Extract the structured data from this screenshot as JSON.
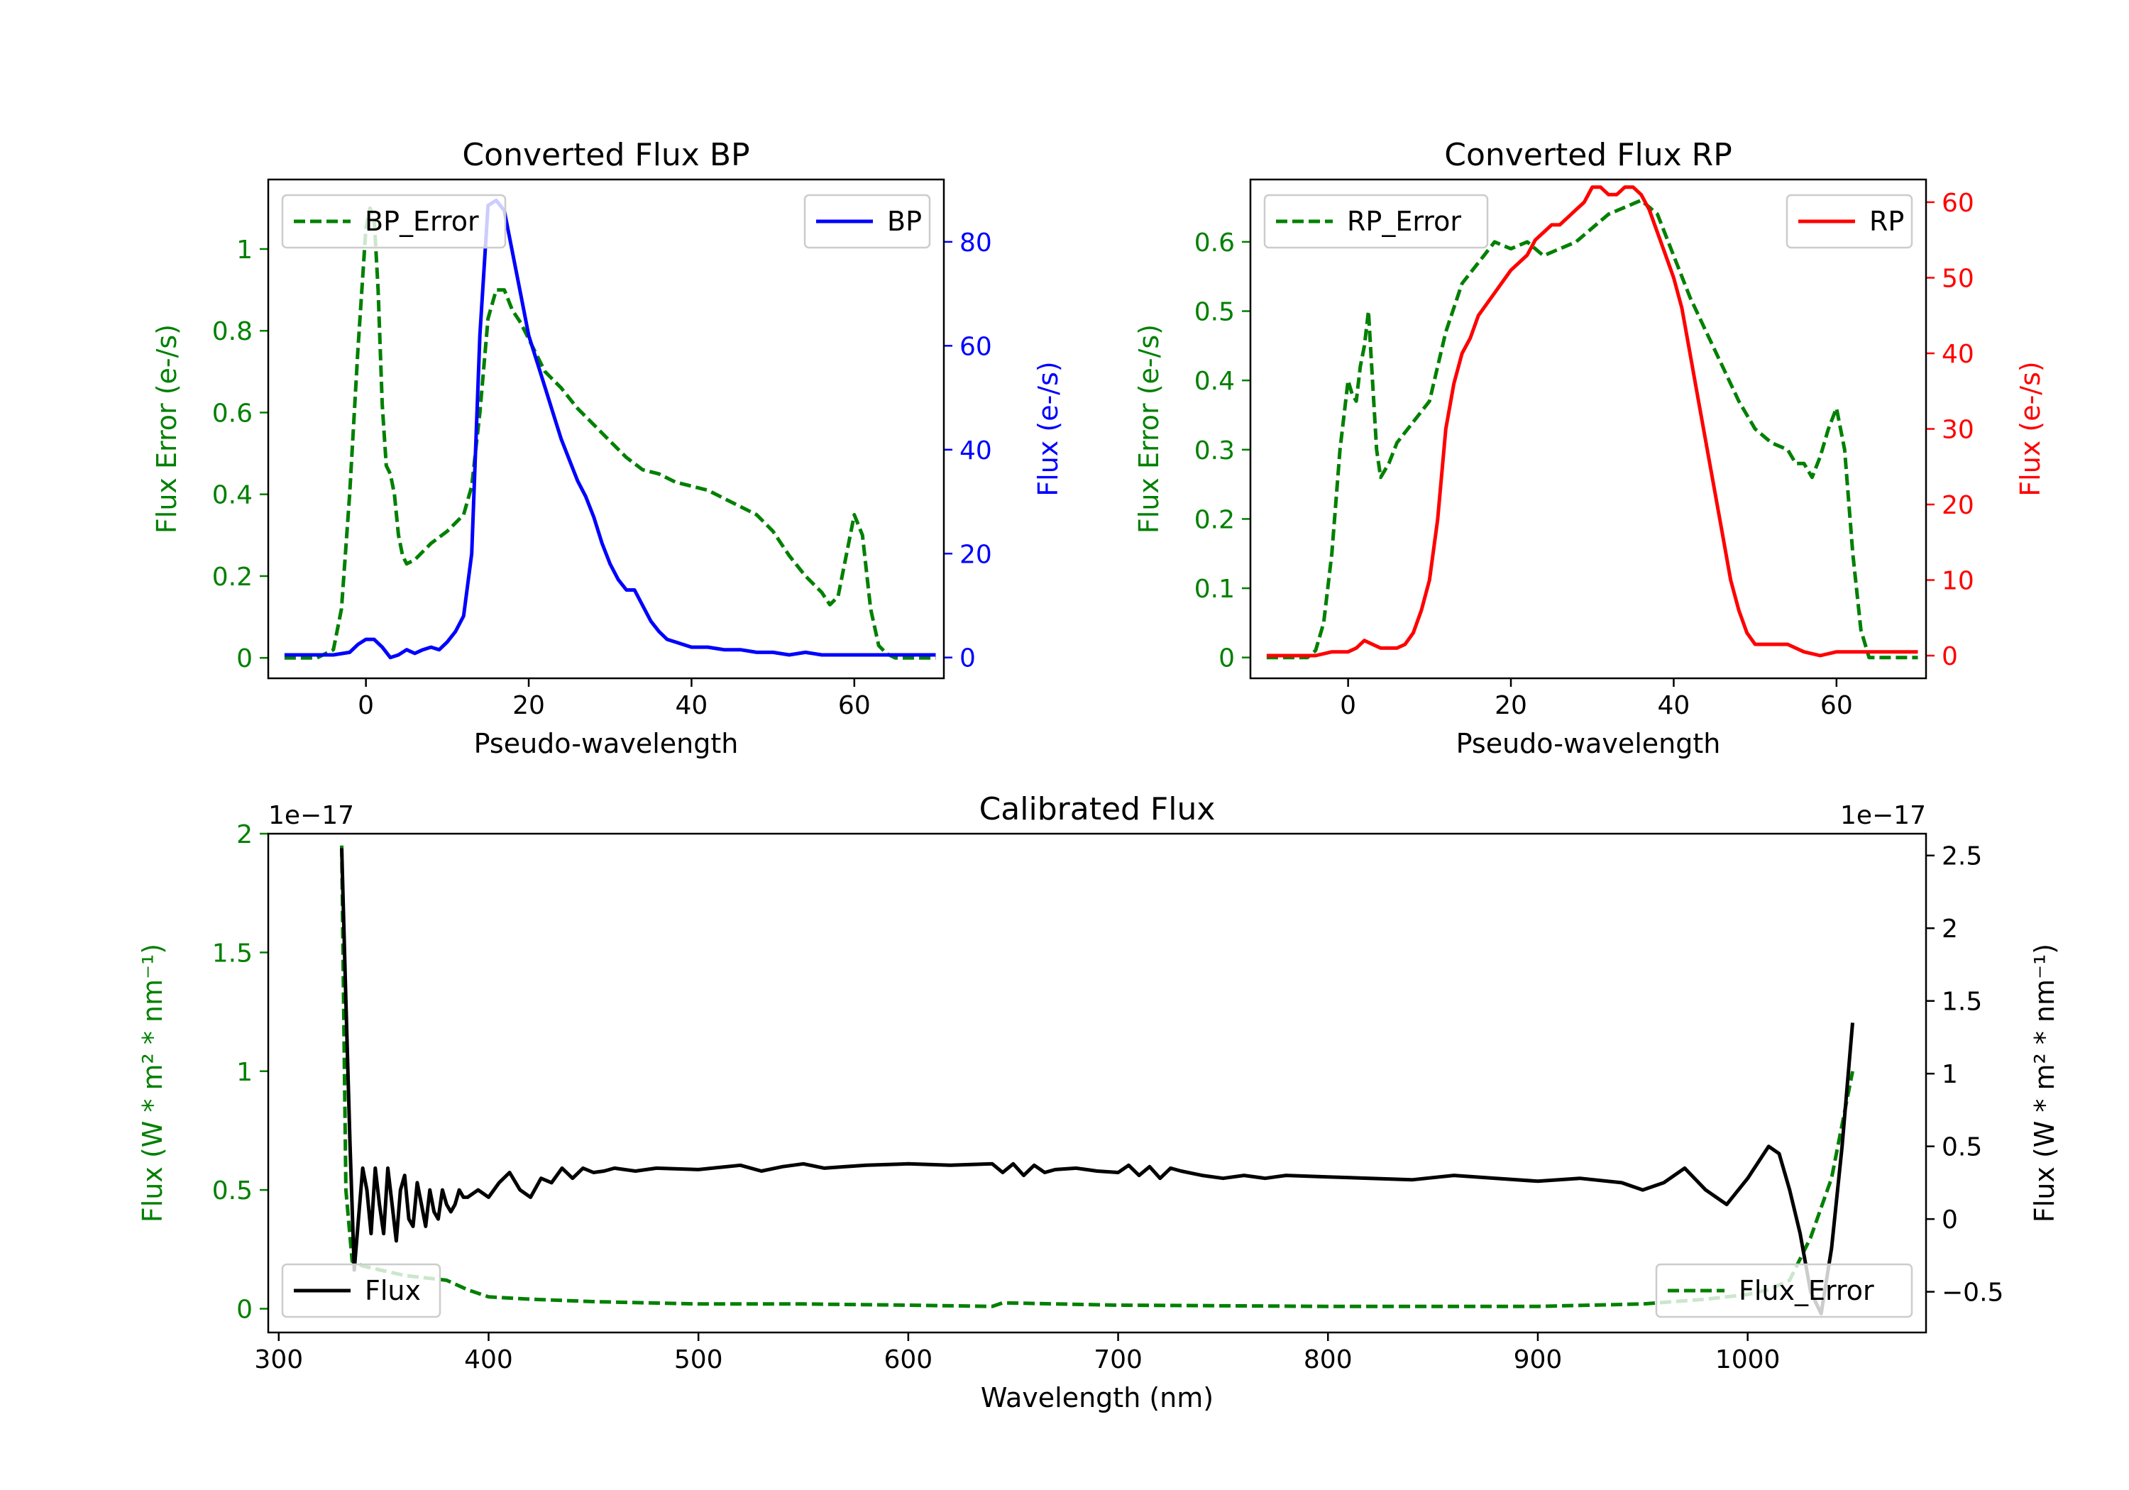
{
  "chart_data": [
    {
      "type": "line",
      "title": "Converted Flux BP",
      "xlabel": "Pseudo-wavelength",
      "ylabel_left": "Flux Error (e-/s)",
      "ylabel_right": "Flux (e-/s)",
      "xlim": [
        -12,
        71
      ],
      "ylim_left": [
        -0.05,
        1.17
      ],
      "ylim_right": [
        -4,
        92
      ],
      "xticks": [
        0,
        20,
        40,
        60
      ],
      "yticks_left": [
        0.0,
        0.2,
        0.4,
        0.6,
        0.8,
        1.0
      ],
      "yticks_right": [
        0,
        20,
        40,
        60,
        80
      ],
      "left_color": "#008000",
      "right_color": "#0000ff",
      "series": [
        {
          "name": "BP_Error",
          "axis": "left",
          "color": "#008000",
          "dash": true,
          "legend": "top-left",
          "x": [
            -10,
            -6,
            -4,
            -3,
            -2,
            -1,
            0,
            0.5,
            1,
            1.5,
            2,
            2.5,
            3,
            3.5,
            4,
            4.5,
            5,
            6,
            7,
            8,
            10,
            12,
            13,
            14,
            15,
            16,
            17,
            18,
            19,
            20,
            21,
            22,
            24,
            26,
            28,
            30,
            32,
            34,
            36,
            38,
            40,
            42,
            44,
            46,
            48,
            50,
            52,
            54,
            56,
            57,
            58,
            59,
            60,
            61,
            62,
            63,
            64,
            65,
            70
          ],
          "y": [
            0.0,
            0.0,
            0.02,
            0.12,
            0.4,
            0.75,
            1.05,
            1.1,
            1.08,
            0.9,
            0.62,
            0.47,
            0.45,
            0.4,
            0.3,
            0.25,
            0.23,
            0.24,
            0.26,
            0.28,
            0.31,
            0.35,
            0.42,
            0.6,
            0.83,
            0.9,
            0.9,
            0.85,
            0.82,
            0.78,
            0.74,
            0.7,
            0.66,
            0.61,
            0.57,
            0.53,
            0.49,
            0.46,
            0.45,
            0.43,
            0.42,
            0.41,
            0.39,
            0.37,
            0.35,
            0.31,
            0.25,
            0.2,
            0.16,
            0.13,
            0.15,
            0.25,
            0.35,
            0.3,
            0.12,
            0.03,
            0.01,
            0.0,
            0.0
          ]
        },
        {
          "name": "BP",
          "axis": "right",
          "color": "#0000ff",
          "dash": false,
          "legend": "top-right",
          "x": [
            -10,
            -4,
            -2,
            -1,
            0,
            1,
            2,
            3,
            4,
            5,
            6,
            7,
            8,
            9,
            10,
            11,
            12,
            13,
            14,
            15,
            16,
            17,
            18,
            19,
            20,
            21,
            22,
            23,
            24,
            25,
            26,
            27,
            28,
            29,
            30,
            31,
            32,
            33,
            34,
            35,
            36,
            37,
            38,
            40,
            42,
            44,
            46,
            48,
            50,
            52,
            54,
            56,
            58,
            60,
            62,
            70
          ],
          "y": [
            0.5,
            0.5,
            1,
            2.5,
            3.5,
            3.5,
            2,
            0,
            0.5,
            1.5,
            0.8,
            1.5,
            2,
            1.5,
            3,
            5,
            8,
            20,
            62,
            87,
            88,
            86,
            78,
            70,
            62,
            57,
            52,
            47,
            42,
            38,
            34,
            31,
            27,
            22,
            18,
            15,
            13,
            13,
            10,
            7,
            5,
            3.5,
            3,
            2,
            2,
            1.5,
            1.5,
            1,
            1,
            0.5,
            1,
            0.5,
            0.5,
            0.5,
            0.5,
            0.5
          ]
        }
      ]
    },
    {
      "type": "line",
      "title": "Converted Flux RP",
      "xlabel": "Pseudo-wavelength",
      "ylabel_left": "Flux Error (e-/s)",
      "ylabel_right": "Flux (e-/s)",
      "xlim": [
        -12,
        71
      ],
      "ylim_left": [
        -0.03,
        0.69
      ],
      "ylim_right": [
        -3,
        63
      ],
      "xticks": [
        0,
        20,
        40,
        60
      ],
      "yticks_left": [
        0.0,
        0.1,
        0.2,
        0.3,
        0.4,
        0.5,
        0.6
      ],
      "yticks_right": [
        0,
        10,
        20,
        30,
        40,
        50,
        60
      ],
      "left_color": "#008000",
      "right_color": "#ff0000",
      "series": [
        {
          "name": "RP_Error",
          "axis": "left",
          "color": "#008000",
          "dash": true,
          "legend": "top-left",
          "x": [
            -10,
            -5,
            -4,
            -3,
            -2,
            -1,
            0,
            0.5,
            1,
            1.5,
            2,
            2.5,
            3,
            3.5,
            4,
            5,
            6,
            8,
            10,
            12,
            14,
            16,
            18,
            20,
            22,
            24,
            26,
            28,
            30,
            32,
            34,
            36,
            38,
            40,
            42,
            44,
            46,
            48,
            50,
            52,
            54,
            55,
            56,
            57,
            58,
            59,
            60,
            61,
            62,
            63,
            64,
            70
          ],
          "y": [
            0.0,
            0.0,
            0.01,
            0.05,
            0.15,
            0.3,
            0.4,
            0.38,
            0.37,
            0.42,
            0.45,
            0.5,
            0.4,
            0.3,
            0.26,
            0.28,
            0.31,
            0.34,
            0.37,
            0.47,
            0.54,
            0.57,
            0.6,
            0.59,
            0.6,
            0.58,
            0.59,
            0.6,
            0.62,
            0.64,
            0.65,
            0.66,
            0.64,
            0.58,
            0.52,
            0.47,
            0.42,
            0.37,
            0.33,
            0.31,
            0.3,
            0.28,
            0.28,
            0.26,
            0.29,
            0.33,
            0.36,
            0.3,
            0.15,
            0.04,
            0.0,
            0.0
          ]
        },
        {
          "name": "RP",
          "axis": "right",
          "color": "#ff0000",
          "dash": false,
          "legend": "top-right",
          "x": [
            -10,
            -4,
            -2,
            0,
            1,
            2,
            3,
            4,
            5,
            6,
            7,
            8,
            9,
            10,
            11,
            12,
            13,
            14,
            15,
            16,
            18,
            20,
            22,
            23,
            24,
            25,
            26,
            27,
            28,
            29,
            30,
            31,
            32,
            33,
            34,
            35,
            36,
            37,
            38,
            39,
            40,
            41,
            42,
            43,
            44,
            45,
            46,
            47,
            48,
            49,
            50,
            52,
            54,
            56,
            58,
            60,
            62,
            70
          ],
          "y": [
            0,
            0,
            0.5,
            0.5,
            1,
            2,
            1.5,
            1,
            1,
            1,
            1.5,
            3,
            6,
            10,
            18,
            30,
            36,
            40,
            42,
            45,
            48,
            51,
            53,
            55,
            56,
            57,
            57,
            58,
            59,
            60,
            62,
            62,
            61,
            61,
            62,
            62,
            61,
            59,
            56,
            53,
            50,
            46,
            40,
            34,
            28,
            22,
            16,
            10,
            6,
            3,
            1.5,
            1.5,
            1.5,
            0.5,
            0,
            0.5,
            0.5,
            0.5
          ]
        }
      ]
    },
    {
      "type": "line",
      "title": "Calibrated Flux",
      "xlabel": "Wavelength (nm)",
      "ylabel_left": "Flux (W * m² * nm⁻¹)",
      "ylabel_right": "Flux (W * m² * nm⁻¹)",
      "offset_left": "1e−17",
      "offset_right": "1e−17",
      "xlim": [
        295,
        1085
      ],
      "ylim_left": [
        -0.1,
        2.0
      ],
      "ylim_right": [
        -0.78,
        2.65
      ],
      "xticks": [
        300,
        400,
        500,
        600,
        700,
        800,
        900,
        1000
      ],
      "yticks_left": [
        0.0,
        0.5,
        1.0,
        1.5,
        2.0
      ],
      "yticks_right": [
        -0.5,
        0.0,
        0.5,
        1.0,
        1.5,
        2.0,
        2.5
      ],
      "left_color": "#008000",
      "right_color": "#000000",
      "series": [
        {
          "name": "Flux_Error",
          "axis": "left",
          "color": "#008000",
          "dash": true,
          "legend": "bottom-right",
          "x": [
            330,
            332,
            335,
            340,
            350,
            360,
            370,
            380,
            390,
            400,
            420,
            450,
            500,
            550,
            600,
            640,
            645,
            700,
            800,
            900,
            950,
            980,
            1000,
            1010,
            1020,
            1030,
            1040,
            1050
          ],
          "y": [
            1.95,
            0.5,
            0.2,
            0.18,
            0.16,
            0.14,
            0.13,
            0.12,
            0.08,
            0.05,
            0.04,
            0.03,
            0.02,
            0.02,
            0.015,
            0.01,
            0.025,
            0.015,
            0.01,
            0.01,
            0.02,
            0.04,
            0.06,
            0.08,
            0.12,
            0.3,
            0.55,
            1.0
          ]
        },
        {
          "name": "Flux",
          "axis": "right",
          "color": "#000000",
          "dash": false,
          "legend": "bottom-left",
          "x": [
            330,
            332,
            334,
            336,
            338,
            340,
            342,
            344,
            346,
            348,
            350,
            352,
            354,
            356,
            358,
            360,
            362,
            364,
            366,
            368,
            370,
            372,
            374,
            376,
            378,
            380,
            382,
            384,
            386,
            388,
            390,
            395,
            400,
            405,
            410,
            415,
            420,
            425,
            430,
            435,
            440,
            445,
            450,
            455,
            460,
            470,
            480,
            500,
            520,
            530,
            540,
            550,
            560,
            570,
            580,
            600,
            620,
            640,
            645,
            650,
            655,
            660,
            665,
            670,
            680,
            690,
            700,
            705,
            710,
            715,
            720,
            725,
            730,
            740,
            750,
            760,
            770,
            780,
            800,
            820,
            840,
            860,
            880,
            900,
            920,
            940,
            950,
            960,
            970,
            980,
            990,
            1000,
            1010,
            1015,
            1020,
            1025,
            1030,
            1035,
            1040,
            1045,
            1050
          ],
          "y": [
            2.55,
            1.5,
            0.5,
            -0.35,
            0.0,
            0.35,
            0.2,
            -0.1,
            0.35,
            0.1,
            -0.1,
            0.35,
            0.1,
            -0.15,
            0.2,
            0.3,
            0.0,
            -0.05,
            0.25,
            0.1,
            -0.05,
            0.2,
            0.05,
            0.0,
            0.2,
            0.1,
            0.05,
            0.1,
            0.2,
            0.15,
            0.15,
            0.2,
            0.15,
            0.25,
            0.32,
            0.2,
            0.15,
            0.28,
            0.25,
            0.35,
            0.28,
            0.35,
            0.32,
            0.33,
            0.35,
            0.33,
            0.35,
            0.34,
            0.37,
            0.33,
            0.36,
            0.38,
            0.35,
            0.36,
            0.37,
            0.38,
            0.37,
            0.38,
            0.32,
            0.38,
            0.3,
            0.37,
            0.32,
            0.34,
            0.35,
            0.33,
            0.32,
            0.37,
            0.3,
            0.36,
            0.28,
            0.35,
            0.33,
            0.3,
            0.28,
            0.3,
            0.28,
            0.3,
            0.29,
            0.28,
            0.27,
            0.3,
            0.28,
            0.26,
            0.28,
            0.25,
            0.2,
            0.25,
            0.35,
            0.2,
            0.1,
            0.28,
            0.5,
            0.45,
            0.2,
            -0.1,
            -0.5,
            -0.65,
            -0.2,
            0.5,
            1.35
          ]
        }
      ]
    }
  ]
}
